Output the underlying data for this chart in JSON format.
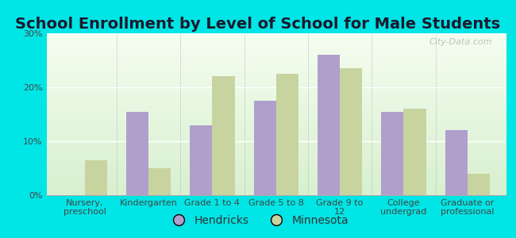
{
  "title": "School Enrollment by Level of School for Male Students",
  "categories": [
    "Nursery,\npreschool",
    "Kindergarten",
    "Grade 1 to 4",
    "Grade 5 to 8",
    "Grade 9 to\n12",
    "College\nundergrad",
    "Graduate or\nprofessional"
  ],
  "hendricks": [
    0,
    15.5,
    13,
    17.5,
    26,
    15.5,
    12
  ],
  "minnesota": [
    6.5,
    5.0,
    22,
    22.5,
    23.5,
    16,
    4
  ],
  "hendricks_color": "#b09fcc",
  "minnesota_color": "#c8d4a0",
  "background_color": "#00e5e5",
  "plot_bg_color_top": "#f5fdf0",
  "plot_bg_color_bottom": "#d8f0d0",
  "ylim": [
    0,
    30
  ],
  "yticks": [
    0,
    10,
    20,
    30
  ],
  "ytick_labels": [
    "0%",
    "10%",
    "20%",
    "30%"
  ],
  "title_fontsize": 14,
  "tick_label_fontsize": 8,
  "legend_labels": [
    "Hendricks",
    "Minnesota"
  ],
  "bar_width": 0.35,
  "watermark": "City-Data.com"
}
